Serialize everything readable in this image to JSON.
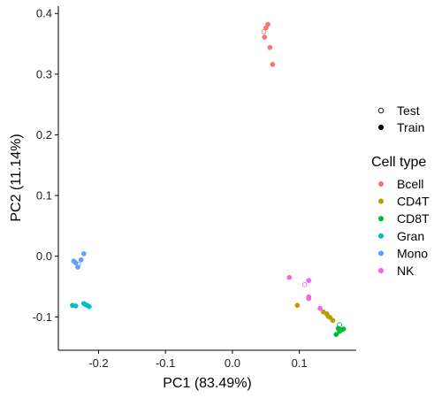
{
  "chart_data": {
    "type": "scatter",
    "xlabel": "PC1 (83.49%)",
    "ylabel": "PC2 (11.14%)",
    "xlim": [
      -0.26,
      0.185
    ],
    "ylim": [
      -0.155,
      0.412
    ],
    "xticks": [
      -0.2,
      -0.1,
      0.0,
      0.1
    ],
    "xtick_labels": [
      "-0.2",
      "-0.1",
      "0.0",
      "0.1"
    ],
    "yticks": [
      -0.1,
      0.0,
      0.1,
      0.2,
      0.3,
      0.4
    ],
    "ytick_labels": [
      "-0.1",
      "0.0",
      "0.1",
      "0.2",
      "0.3",
      "0.4"
    ],
    "grid": false,
    "legend_position": "right",
    "shape_legend": {
      "title": "",
      "entries": [
        {
          "label": "Test",
          "marker": "open-circle"
        },
        {
          "label": "Train",
          "marker": "filled-circle"
        }
      ]
    },
    "color_legend": {
      "title": "Cell type",
      "entries": [
        {
          "label": "Bcell",
          "color": "#F8766D"
        },
        {
          "label": "CD4T",
          "color": "#B79F00"
        },
        {
          "label": "CD8T",
          "color": "#00BA38"
        },
        {
          "label": "Gran",
          "color": "#00BFC4"
        },
        {
          "label": "Mono",
          "color": "#619CFF"
        },
        {
          "label": "NK",
          "color": "#F564E3"
        }
      ]
    },
    "series": [
      {
        "name": "Bcell",
        "points": [
          {
            "x": 0.047,
            "y": 0.37,
            "set": "Test"
          },
          {
            "x": 0.05,
            "y": 0.376,
            "set": "Train"
          },
          {
            "x": 0.053,
            "y": 0.382,
            "set": "Train"
          },
          {
            "x": 0.048,
            "y": 0.361,
            "set": "Train"
          },
          {
            "x": 0.056,
            "y": 0.344,
            "set": "Train"
          },
          {
            "x": 0.06,
            "y": 0.316,
            "set": "Train"
          }
        ]
      },
      {
        "name": "CD4T",
        "points": [
          {
            "x": 0.097,
            "y": -0.081,
            "set": "Train"
          },
          {
            "x": 0.136,
            "y": -0.092,
            "set": "Train"
          },
          {
            "x": 0.141,
            "y": -0.095,
            "set": "Train"
          },
          {
            "x": 0.143,
            "y": -0.099,
            "set": "Train"
          },
          {
            "x": 0.146,
            "y": -0.101,
            "set": "Train"
          },
          {
            "x": 0.15,
            "y": -0.106,
            "set": "Train"
          }
        ]
      },
      {
        "name": "CD8T",
        "points": [
          {
            "x": 0.16,
            "y": -0.113,
            "set": "Test"
          },
          {
            "x": 0.158,
            "y": -0.119,
            "set": "Train"
          },
          {
            "x": 0.163,
            "y": -0.121,
            "set": "Train"
          },
          {
            "x": 0.166,
            "y": -0.12,
            "set": "Train"
          },
          {
            "x": 0.16,
            "y": -0.124,
            "set": "Train"
          },
          {
            "x": 0.155,
            "y": -0.129,
            "set": "Train"
          }
        ]
      },
      {
        "name": "Gran",
        "points": [
          {
            "x": -0.239,
            "y": -0.081,
            "set": "Train"
          },
          {
            "x": -0.234,
            "y": -0.082,
            "set": "Train"
          },
          {
            "x": -0.222,
            "y": -0.078,
            "set": "Train"
          },
          {
            "x": -0.219,
            "y": -0.08,
            "set": "Train"
          },
          {
            "x": -0.217,
            "y": -0.081,
            "set": "Train"
          },
          {
            "x": -0.214,
            "y": -0.083,
            "set": "Train"
          }
        ]
      },
      {
        "name": "Mono",
        "points": [
          {
            "x": -0.23,
            "y": -0.013,
            "set": "Test"
          },
          {
            "x": -0.237,
            "y": -0.008,
            "set": "Train"
          },
          {
            "x": -0.234,
            "y": -0.011,
            "set": "Train"
          },
          {
            "x": -0.231,
            "y": -0.018,
            "set": "Train"
          },
          {
            "x": -0.226,
            "y": -0.006,
            "set": "Train"
          },
          {
            "x": -0.222,
            "y": 0.004,
            "set": "Train"
          }
        ]
      },
      {
        "name": "NK",
        "points": [
          {
            "x": 0.108,
            "y": -0.047,
            "set": "Test"
          },
          {
            "x": 0.085,
            "y": -0.035,
            "set": "Train"
          },
          {
            "x": 0.114,
            "y": -0.04,
            "set": "Train"
          },
          {
            "x": 0.114,
            "y": -0.067,
            "set": "Train"
          },
          {
            "x": 0.114,
            "y": -0.07,
            "set": "Train"
          },
          {
            "x": 0.131,
            "y": -0.086,
            "set": "Train"
          }
        ]
      }
    ]
  }
}
